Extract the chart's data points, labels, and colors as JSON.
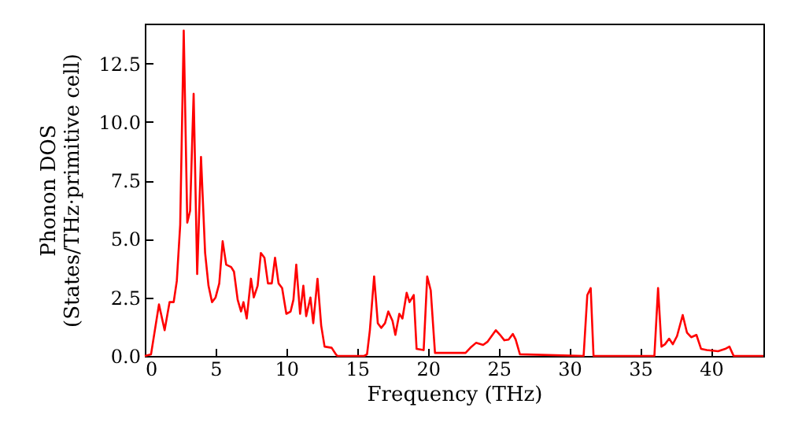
{
  "chart_data": {
    "type": "line",
    "xlabel": "Frequency (THz)",
    "ylabel": "Phonon DOS\n(States/THz·primitive cell)",
    "x": [
      0,
      0.44,
      1.0,
      1.4,
      1.75,
      2.04,
      2.26,
      2.5,
      2.75,
      3.0,
      3.2,
      3.45,
      3.7,
      3.97,
      4.26,
      4.5,
      4.75,
      5.0,
      5.26,
      5.5,
      5.75,
      6.1,
      6.3,
      6.56,
      6.8,
      6.97,
      7.2,
      7.5,
      7.7,
      7.97,
      8.2,
      8.45,
      8.7,
      8.97,
      9.2,
      9.45,
      9.7,
      10.0,
      10.3,
      10.5,
      10.7,
      10.97,
      11.2,
      11.4,
      11.7,
      11.9,
      12.2,
      12.46,
      12.7,
      13.2,
      13.5,
      13.6,
      15.5,
      15.7,
      15.9,
      16.2,
      16.46,
      16.7,
      16.97,
      17.2,
      17.5,
      17.7,
      17.98,
      18.2,
      18.5,
      18.7,
      19.0,
      19.2,
      19.7,
      19.95,
      20.2,
      20.5,
      22.66,
      23.0,
      23.4,
      23.9,
      24.2,
      24.8,
      25.1,
      25.4,
      25.7,
      26.0,
      26.2,
      26.5,
      31.0,
      31.26,
      31.5,
      31.7,
      36.0,
      36.26,
      36.5,
      36.75,
      37.04,
      37.3,
      37.6,
      38.0,
      38.3,
      38.6,
      38.97,
      39.3,
      39.7,
      40.5,
      41.0,
      41.3,
      41.6,
      43.7
    ],
    "series": [
      {
        "color": "#ff0000",
        "values": [
          0,
          0.07,
          2.2,
          1.1,
          2.3,
          2.3,
          3.2,
          5.6,
          13.9,
          5.7,
          6.2,
          11.2,
          3.5,
          8.5,
          4.4,
          3.0,
          2.3,
          2.5,
          3.1,
          4.9,
          3.9,
          3.8,
          3.6,
          2.4,
          1.9,
          2.3,
          1.6,
          3.3,
          2.5,
          3.0,
          4.4,
          4.2,
          3.1,
          3.1,
          4.2,
          3.1,
          2.9,
          1.8,
          1.9,
          2.4,
          3.9,
          1.8,
          3.0,
          1.7,
          2.5,
          1.4,
          3.3,
          1.3,
          0.4,
          0.35,
          0.07,
          0,
          0,
          0.07,
          1.1,
          3.4,
          1.4,
          1.2,
          1.4,
          1.9,
          1.5,
          0.9,
          1.8,
          1.6,
          2.7,
          2.3,
          2.6,
          0.3,
          0.25,
          3.4,
          2.8,
          0.13,
          0.13,
          0.35,
          0.56,
          0.47,
          0.6,
          1.1,
          0.9,
          0.67,
          0.7,
          0.94,
          0.7,
          0.07,
          0,
          2.6,
          2.9,
          0,
          0,
          2.9,
          0.4,
          0.5,
          0.74,
          0.5,
          0.85,
          1.75,
          1.0,
          0.8,
          0.9,
          0.3,
          0.25,
          0.2,
          0.3,
          0.4,
          0,
          0
        ]
      }
    ],
    "xlim": [
      0,
      43.7
    ],
    "ylim": [
      0,
      14.2
    ],
    "xticks": [
      0,
      5,
      10,
      15,
      20,
      25,
      30,
      35,
      40
    ],
    "yticks": [
      {
        "value": 0,
        "label": "0.0"
      },
      {
        "value": 2.5,
        "label": "2.5"
      },
      {
        "value": 5,
        "label": "5.0"
      },
      {
        "value": 7.5,
        "label": "7.5"
      },
      {
        "value": 10,
        "label": "10.0"
      },
      {
        "value": 12.5,
        "label": "12.5"
      }
    ],
    "line_style": "solid"
  }
}
